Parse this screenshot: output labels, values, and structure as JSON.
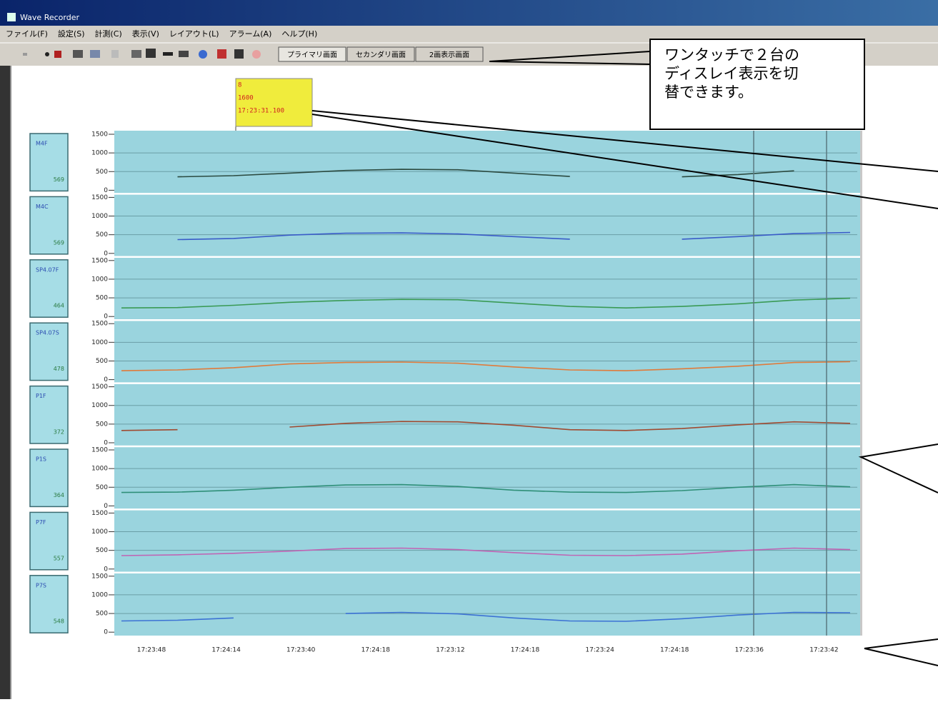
{
  "window": {
    "title": "Wave Recorder"
  },
  "menu": [
    "ファイル(F)",
    "設定(S)",
    "計測(C)",
    "表示(V)",
    "レイアウト(L)",
    "アラーム(A)",
    "ヘルプ(H)"
  ],
  "toolbar_buttons": [
    "プライマリ画面",
    "セカンダリ画面",
    "2画表示画面"
  ],
  "callout": {
    "lines": [
      "ワンタッチで２台の",
      "ディスレイ表示を切",
      "替できます。"
    ]
  },
  "cursor_box": {
    "lines": [
      "8",
      "1600",
      "17:23:31.100"
    ]
  },
  "chart_data": {
    "type": "line",
    "x_labels": [
      "17:23:48",
      "17:24:14",
      "17:23:40",
      "17:24:18",
      "17:23:12",
      "17:24:18",
      "17:23:24",
      "17:24:18",
      "17:23:36",
      "17:23:42"
    ],
    "panels": [
      {
        "name": "M4F",
        "value": 569,
        "color": "#2b4a40",
        "ylim": [
          0,
          1500
        ],
        "yticks": [
          0,
          500,
          1000,
          1500
        ],
        "values": [
          null,
          360,
          390,
          460,
          530,
          560,
          550,
          460,
          370,
          null,
          360,
          420,
          520,
          null
        ]
      },
      {
        "name": "M4C",
        "value": 569,
        "color": "#3a5cc8",
        "ylim": [
          0,
          1500
        ],
        "yticks": [
          0,
          500,
          1000,
          1500
        ],
        "values": [
          null,
          370,
          400,
          490,
          540,
          550,
          520,
          450,
          380,
          null,
          380,
          450,
          530,
          560
        ]
      },
      {
        "name": "SP4.07F",
        "value": 464,
        "color": "#3a9a55",
        "ylim": [
          0,
          1500
        ],
        "yticks": [
          0,
          500,
          1000,
          1500
        ],
        "values": [
          230,
          240,
          300,
          380,
          430,
          460,
          450,
          360,
          270,
          230,
          270,
          340,
          440,
          490
        ]
      },
      {
        "name": "SP4.07S",
        "value": 478,
        "color": "#e07a3a",
        "ylim": [
          0,
          1500
        ],
        "yticks": [
          0,
          500,
          1000,
          1500
        ],
        "values": [
          240,
          260,
          320,
          420,
          460,
          470,
          440,
          340,
          260,
          240,
          290,
          360,
          460,
          480
        ]
      },
      {
        "name": "P1F",
        "value": 372,
        "color": "#a04a30",
        "ylim": [
          0,
          1500
        ],
        "yticks": [
          0,
          500,
          1000,
          1500
        ],
        "values": [
          330,
          350,
          null,
          420,
          520,
          570,
          560,
          470,
          350,
          330,
          380,
          480,
          560,
          520
        ]
      },
      {
        "name": "P1S",
        "value": 364,
        "color": "#2f8f78",
        "ylim": [
          0,
          1500
        ],
        "yticks": [
          0,
          500,
          1000,
          1500
        ],
        "values": [
          360,
          370,
          420,
          500,
          560,
          570,
          520,
          420,
          370,
          360,
          410,
          500,
          570,
          510
        ]
      },
      {
        "name": "P7F",
        "value": 557,
        "color": "#c064b4",
        "ylim": [
          0,
          1500
        ],
        "yticks": [
          0,
          500,
          1000,
          1500
        ],
        "values": [
          360,
          380,
          420,
          480,
          550,
          560,
          520,
          440,
          370,
          360,
          400,
          490,
          560,
          520
        ]
      },
      {
        "name": "P7S",
        "value": 548,
        "color": "#3c72d4",
        "ylim": [
          0,
          1500
        ],
        "yticks": [
          0,
          500,
          1000,
          1500
        ],
        "values": [
          300,
          320,
          380,
          null,
          500,
          530,
          490,
          380,
          300,
          290,
          360,
          460,
          530,
          520
        ]
      }
    ]
  }
}
